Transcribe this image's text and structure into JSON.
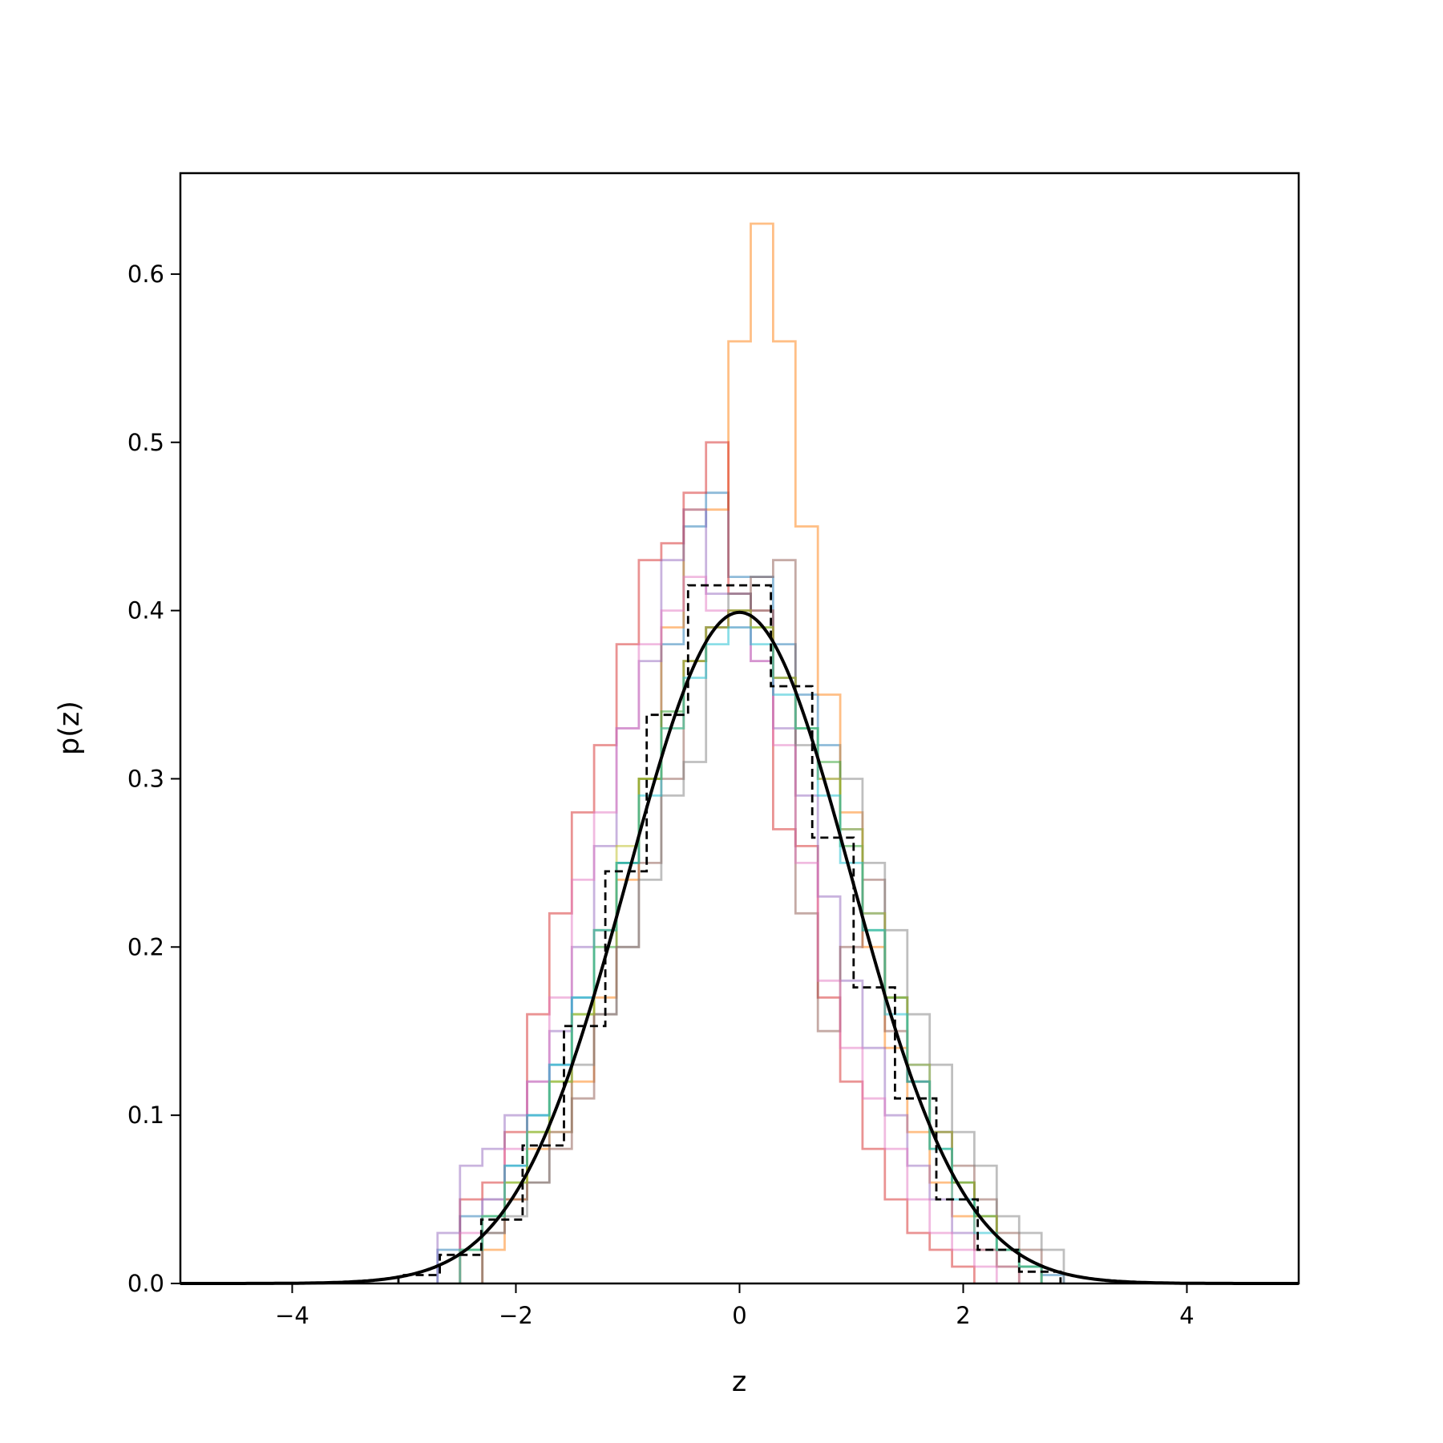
{
  "chart_data": {
    "type": "line",
    "title": "",
    "xlabel": "z",
    "ylabel": "p(z)",
    "xlim": [
      -5,
      5
    ],
    "ylim": [
      0,
      0.66
    ],
    "xticks": [
      {
        "value": -4,
        "label": "−4"
      },
      {
        "value": -2,
        "label": "−2"
      },
      {
        "value": 0,
        "label": "0"
      },
      {
        "value": 2,
        "label": "2"
      },
      {
        "value": 4,
        "label": "4"
      }
    ],
    "yticks": [
      {
        "value": 0.0,
        "label": "0.0"
      },
      {
        "value": 0.1,
        "label": "0.1"
      },
      {
        "value": 0.2,
        "label": "0.2"
      },
      {
        "value": 0.3,
        "label": "0.3"
      },
      {
        "value": 0.4,
        "label": "0.4"
      },
      {
        "value": 0.5,
        "label": "0.5"
      },
      {
        "value": 0.6,
        "label": "0.6"
      }
    ],
    "grid": false,
    "histograms": [
      {
        "color": "#1f77b4",
        "edges": [
          -2.7,
          -2.5,
          -2.3,
          -2.1,
          -1.9,
          -1.7,
          -1.5,
          -1.3,
          -1.1,
          -0.9,
          -0.7,
          -0.5,
          -0.3,
          -0.1,
          0.1,
          0.3,
          0.5,
          0.7,
          0.9,
          1.1,
          1.3,
          1.5,
          1.7,
          1.9,
          2.1,
          2.3,
          2.5,
          2.7,
          2.9
        ],
        "values": [
          0.02,
          0.04,
          0.05,
          0.07,
          0.1,
          0.13,
          0.17,
          0.21,
          0.25,
          0.3,
          0.38,
          0.45,
          0.47,
          0.42,
          0.42,
          0.38,
          0.35,
          0.32,
          0.27,
          0.22,
          0.17,
          0.13,
          0.09,
          0.06,
          0.04,
          0.02,
          0.01,
          0.005
        ]
      },
      {
        "color": "#ff7f0e",
        "edges": [
          -2.3,
          -2.1,
          -1.9,
          -1.7,
          -1.5,
          -1.3,
          -1.1,
          -0.9,
          -0.7,
          -0.5,
          -0.3,
          -0.1,
          0.1,
          0.3,
          0.5,
          0.7,
          0.9,
          1.1,
          1.3,
          1.5,
          1.7,
          1.9,
          2.1,
          2.3,
          2.5
        ],
        "values": [
          0.02,
          0.05,
          0.08,
          0.09,
          0.12,
          0.17,
          0.24,
          0.3,
          0.39,
          0.46,
          0.46,
          0.56,
          0.63,
          0.56,
          0.45,
          0.35,
          0.28,
          0.2,
          0.14,
          0.09,
          0.06,
          0.04,
          0.02,
          0.01
        ]
      },
      {
        "color": "#2ca02c",
        "edges": [
          -2.5,
          -2.3,
          -2.1,
          -1.9,
          -1.7,
          -1.5,
          -1.3,
          -1.1,
          -0.9,
          -0.7,
          -0.5,
          -0.3,
          -0.1,
          0.1,
          0.3,
          0.5,
          0.7,
          0.9,
          1.1,
          1.3,
          1.5,
          1.7,
          1.9,
          2.1,
          2.3,
          2.5,
          2.7
        ],
        "values": [
          0.02,
          0.04,
          0.06,
          0.09,
          0.12,
          0.16,
          0.2,
          0.25,
          0.3,
          0.34,
          0.37,
          0.39,
          0.4,
          0.39,
          0.36,
          0.33,
          0.31,
          0.26,
          0.21,
          0.17,
          0.12,
          0.08,
          0.06,
          0.04,
          0.02,
          0.01
        ]
      },
      {
        "color": "#d62728",
        "edges": [
          -2.5,
          -2.3,
          -2.1,
          -1.9,
          -1.7,
          -1.5,
          -1.3,
          -1.1,
          -0.9,
          -0.7,
          -0.5,
          -0.3,
          -0.1,
          0.1,
          0.3,
          0.5,
          0.7,
          0.9,
          1.1,
          1.3,
          1.5,
          1.7,
          1.9,
          2.1
        ],
        "values": [
          0.05,
          0.06,
          0.09,
          0.16,
          0.22,
          0.28,
          0.32,
          0.38,
          0.43,
          0.44,
          0.47,
          0.5,
          0.41,
          0.4,
          0.27,
          0.26,
          0.17,
          0.12,
          0.08,
          0.05,
          0.03,
          0.02,
          0.01
        ]
      },
      {
        "color": "#9467bd",
        "edges": [
          -2.7,
          -2.5,
          -2.3,
          -2.1,
          -1.9,
          -1.7,
          -1.5,
          -1.3,
          -1.1,
          -0.9,
          -0.7,
          -0.5,
          -0.3,
          -0.1,
          0.1,
          0.3,
          0.5,
          0.7,
          0.9,
          1.1,
          1.3,
          1.5,
          1.7,
          1.9,
          2.1,
          2.3,
          2.5
        ],
        "values": [
          0.03,
          0.07,
          0.08,
          0.1,
          0.12,
          0.15,
          0.2,
          0.26,
          0.33,
          0.37,
          0.43,
          0.46,
          0.41,
          0.41,
          0.37,
          0.33,
          0.29,
          0.23,
          0.18,
          0.14,
          0.1,
          0.07,
          0.05,
          0.03,
          0.02,
          0.01
        ]
      },
      {
        "color": "#8c564b",
        "edges": [
          -2.3,
          -2.1,
          -1.9,
          -1.7,
          -1.5,
          -1.3,
          -1.1,
          -0.9,
          -0.7,
          -0.5,
          -0.3,
          -0.1,
          0.1,
          0.3,
          0.5,
          0.7,
          0.9,
          1.1,
          1.3,
          1.5,
          1.7,
          1.9,
          2.1,
          2.3,
          2.5,
          2.7
        ],
        "values": [
          0.03,
          0.05,
          0.06,
          0.08,
          0.11,
          0.16,
          0.2,
          0.25,
          0.3,
          0.37,
          0.39,
          0.4,
          0.42,
          0.43,
          0.22,
          0.15,
          0.2,
          0.24,
          0.15,
          0.12,
          0.09,
          0.07,
          0.05,
          0.03,
          0.02
        ]
      },
      {
        "color": "#e377c2",
        "edges": [
          -2.5,
          -2.3,
          -2.1,
          -1.9,
          -1.7,
          -1.5,
          -1.3,
          -1.1,
          -0.9,
          -0.7,
          -0.5,
          -0.3,
          -0.1,
          0.1,
          0.3,
          0.5,
          0.7,
          0.9,
          1.1,
          1.3,
          1.5,
          1.7,
          1.9,
          2.1,
          2.3
        ],
        "values": [
          0.03,
          0.05,
          0.08,
          0.12,
          0.17,
          0.24,
          0.28,
          0.33,
          0.38,
          0.4,
          0.42,
          0.4,
          0.39,
          0.37,
          0.32,
          0.25,
          0.18,
          0.14,
          0.11,
          0.08,
          0.05,
          0.03,
          0.02,
          0.01
        ]
      },
      {
        "color": "#7f7f7f",
        "edges": [
          -2.3,
          -2.1,
          -1.9,
          -1.7,
          -1.5,
          -1.3,
          -1.1,
          -0.9,
          -0.7,
          -0.5,
          -0.3,
          -0.1,
          0.1,
          0.3,
          0.5,
          0.7,
          0.9,
          1.1,
          1.3,
          1.5,
          1.7,
          1.9,
          2.1,
          2.3,
          2.5,
          2.7,
          2.9
        ],
        "values": [
          0.03,
          0.04,
          0.06,
          0.09,
          0.13,
          0.16,
          0.2,
          0.24,
          0.29,
          0.31,
          0.39,
          0.41,
          0.4,
          0.36,
          0.32,
          0.3,
          0.3,
          0.25,
          0.21,
          0.16,
          0.13,
          0.09,
          0.07,
          0.04,
          0.03,
          0.02
        ]
      },
      {
        "color": "#bcbd22",
        "edges": [
          -2.5,
          -2.3,
          -2.1,
          -1.9,
          -1.7,
          -1.5,
          -1.3,
          -1.1,
          -0.9,
          -0.7,
          -0.5,
          -0.3,
          -0.1,
          0.1,
          0.3,
          0.5,
          0.7,
          0.9,
          1.1,
          1.3,
          1.5,
          1.7,
          1.9,
          2.1,
          2.3,
          2.5,
          2.7
        ],
        "values": [
          0.02,
          0.04,
          0.06,
          0.09,
          0.12,
          0.16,
          0.21,
          0.26,
          0.3,
          0.33,
          0.37,
          0.39,
          0.4,
          0.39,
          0.36,
          0.33,
          0.3,
          0.27,
          0.22,
          0.17,
          0.13,
          0.09,
          0.06,
          0.04,
          0.02,
          0.01
        ]
      },
      {
        "color": "#17becf",
        "edges": [
          -2.5,
          -2.3,
          -2.1,
          -1.9,
          -1.7,
          -1.5,
          -1.3,
          -1.1,
          -0.9,
          -0.7,
          -0.5,
          -0.3,
          -0.1,
          0.1,
          0.3,
          0.5,
          0.7,
          0.9,
          1.1,
          1.3,
          1.5,
          1.7,
          1.9,
          2.1,
          2.3,
          2.5,
          2.7
        ],
        "values": [
          0.02,
          0.04,
          0.07,
          0.1,
          0.13,
          0.17,
          0.21,
          0.25,
          0.29,
          0.33,
          0.36,
          0.38,
          0.39,
          0.38,
          0.35,
          0.33,
          0.29,
          0.25,
          0.21,
          0.16,
          0.12,
          0.08,
          0.05,
          0.03,
          0.02,
          0.01
        ]
      }
    ],
    "reference_histogram": {
      "color": "#000000",
      "style": "dashed",
      "edges": [
        -3.05,
        -2.68,
        -2.31,
        -1.94,
        -1.57,
        -1.2,
        -0.83,
        -0.46,
        -0.09,
        0.28,
        0.65,
        1.02,
        1.39,
        1.76,
        2.13,
        2.5,
        2.87
      ],
      "values": [
        0.005,
        0.017,
        0.038,
        0.082,
        0.153,
        0.245,
        0.338,
        0.415,
        0.415,
        0.355,
        0.265,
        0.176,
        0.11,
        0.05,
        0.02,
        0.007
      ]
    },
    "curve": {
      "color": "#000000",
      "label": "",
      "function": "standard normal pdf",
      "x": [
        -4.0,
        -3.5,
        -3.0,
        -2.5,
        -2.0,
        -1.5,
        -1.0,
        -0.5,
        0.0,
        0.5,
        1.0,
        1.5,
        2.0,
        2.5,
        3.0,
        3.5,
        4.0
      ],
      "y": [
        0.0001,
        0.0009,
        0.0044,
        0.0175,
        0.054,
        0.1295,
        0.242,
        0.3521,
        0.3989,
        0.3521,
        0.242,
        0.1295,
        0.054,
        0.0175,
        0.0044,
        0.0009,
        0.0001
      ]
    }
  }
}
